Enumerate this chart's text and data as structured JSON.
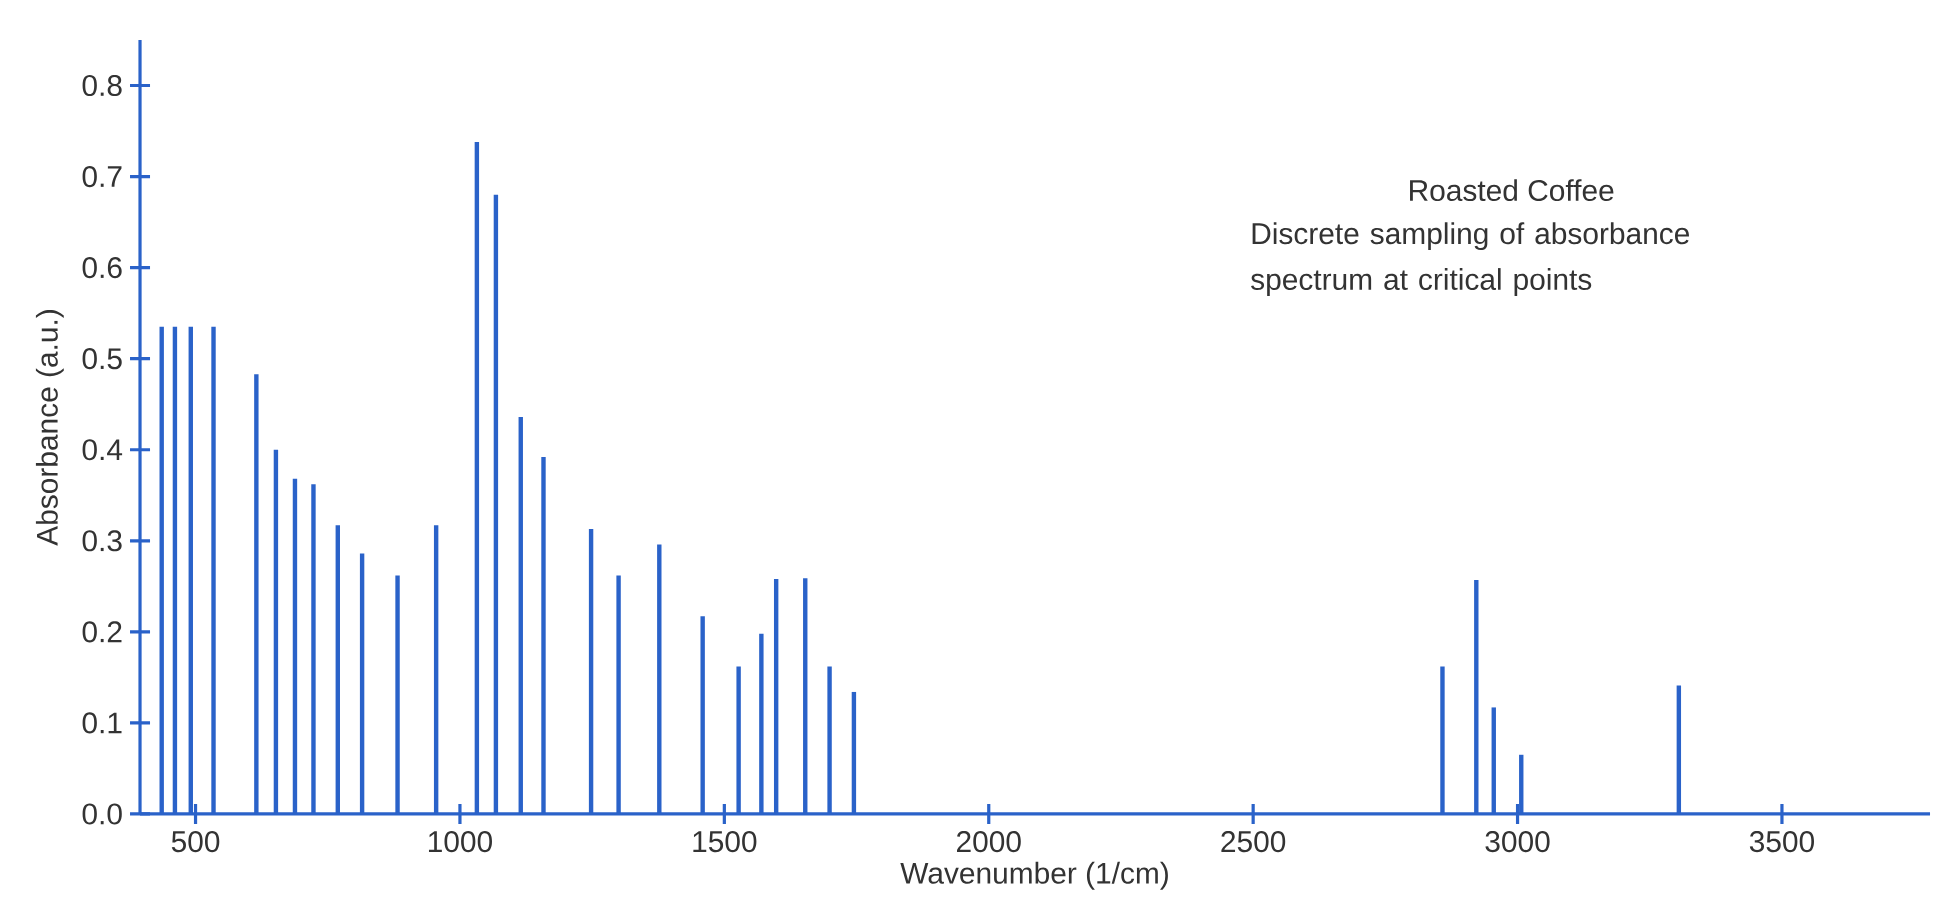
{
  "chart_data": {
    "type": "bar",
    "title": "Roasted Coffee",
    "subtitle": "Discrete sampling of absorbance spectrum at critical points",
    "xlabel": "Wavenumber (1/cm)",
    "ylabel": "Absorbance (a.u.)",
    "x": [
      436,
      461,
      491,
      534,
      615,
      652,
      688,
      723,
      769,
      815,
      882,
      955,
      1032,
      1068,
      1115,
      1158,
      1248,
      1300,
      1377,
      1459,
      1527,
      1570,
      1598,
      1653,
      1699,
      1745,
      2858,
      2922,
      2955,
      3007,
      3305
    ],
    "values": [
      0.535,
      0.535,
      0.535,
      0.535,
      0.483,
      0.4,
      0.368,
      0.362,
      0.317,
      0.286,
      0.262,
      0.317,
      0.738,
      0.68,
      0.436,
      0.392,
      0.313,
      0.262,
      0.296,
      0.217,
      0.162,
      0.198,
      0.258,
      0.259,
      0.162,
      0.134,
      0.162,
      0.257,
      0.117,
      0.065,
      0.141
    ],
    "color": "#2a62c9",
    "xlim": [
      395,
      3780
    ],
    "ylim": [
      0,
      0.85
    ],
    "xticks": [
      500,
      1000,
      1500,
      2000,
      2500,
      3000,
      3500
    ],
    "yticks": [
      {
        "value": 0,
        "label": "0.0"
      },
      {
        "value": 0.1,
        "label": "0.1"
      },
      {
        "value": 0.2,
        "label": "0.2"
      },
      {
        "value": 0.3,
        "label": "0.3"
      },
      {
        "value": 0.4,
        "label": "0.4"
      },
      {
        "value": 0.5,
        "label": "0.5"
      },
      {
        "value": 0.6,
        "label": "0.6"
      },
      {
        "value": 0.7,
        "label": "0.7"
      },
      {
        "value": 0.8,
        "label": "0.8"
      }
    ],
    "grid": false
  }
}
